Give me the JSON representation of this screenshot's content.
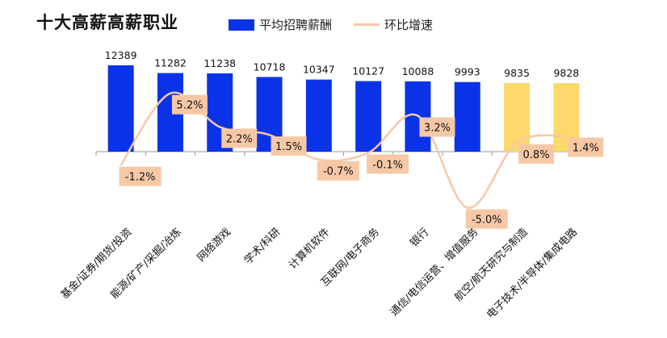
{
  "chart_data": {
    "type": "bar",
    "title": "十大高薪高薪职业",
    "categories": [
      "基金/证券/期货/投资",
      "能源/矿产/采掘/冶炼",
      "网络游戏",
      "学术/科研",
      "计算机软件",
      "互联网/电子商务",
      "银行",
      "通信/电信运营、增值服务",
      "航空/航天研究与制造",
      "电子技术/半导体/集成电路"
    ],
    "series": [
      {
        "name": "平均招聘薪酬",
        "type": "bar",
        "values": [
          12389,
          11282,
          11238,
          10718,
          10347,
          10127,
          10088,
          9993,
          9835,
          9828
        ],
        "value_labels": [
          "12389",
          "11282",
          "11238",
          "10718",
          "10347",
          "10127",
          "10088",
          "9993",
          "9835",
          "9828"
        ]
      },
      {
        "name": "环比增速",
        "type": "line",
        "values": [
          -1.2,
          5.2,
          2.2,
          1.5,
          -0.7,
          -0.1,
          3.2,
          -5.0,
          0.8,
          1.4
        ],
        "value_labels": [
          "-1.2%",
          "5.2%",
          "2.2%",
          "1.5%",
          "-0.7%",
          "-0.1%",
          "3.2%",
          "-5.0%",
          "0.8%",
          "1.4%"
        ]
      }
    ],
    "legend_position": "top",
    "grid": false
  },
  "colors": {
    "bar_primary": "#0a33e8",
    "bar_highlight": "#fcd96a",
    "line": "#f7c8a6",
    "label_box": "#f7c8a6",
    "axis": "#999999"
  }
}
